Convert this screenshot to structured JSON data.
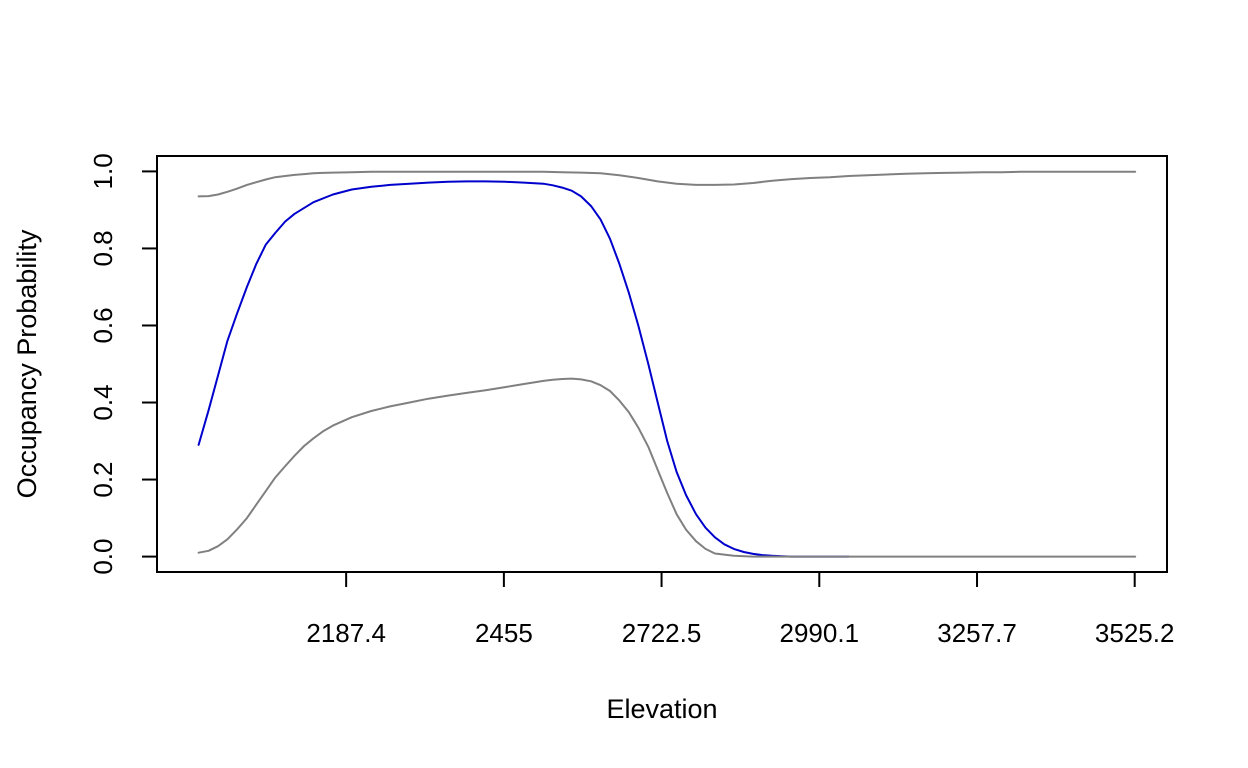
{
  "chart_data": {
    "type": "line",
    "title": "",
    "xlabel": "Elevation",
    "ylabel": "Occupancy Probability",
    "xlim": [
      1866.5,
      3580
    ],
    "ylim": [
      -0.04,
      1.04
    ],
    "grid": false,
    "x_ticks": [
      2187.4,
      2455,
      2722.5,
      2990.1,
      3257.7,
      3525.2
    ],
    "x_tick_labels": [
      "2187.4",
      "2455",
      "2722.5",
      "2990.1",
      "3257.7",
      "3525.2"
    ],
    "y_ticks": [
      0.0,
      0.2,
      0.4,
      0.6,
      0.8,
      1.0
    ],
    "y_tick_labels": [
      "0.0",
      "0.2",
      "0.4",
      "0.6",
      "0.8",
      "1.0"
    ],
    "series": [
      {
        "color": "#0000cc",
        "x": [
          1937,
          1954,
          1970,
          1986,
          2002,
          2019,
          2035,
          2051,
          2067,
          2084,
          2100,
          2132,
          2165,
          2197,
          2230,
          2262,
          2295,
          2327,
          2360,
          2392,
          2424,
          2457,
          2489,
          2522,
          2538,
          2554,
          2570,
          2586,
          2603,
          2619,
          2635,
          2651,
          2667,
          2683,
          2700,
          2716,
          2732,
          2748,
          2764,
          2781,
          2797,
          2813,
          2829,
          2845,
          2862,
          2878,
          2894,
          2910,
          2927,
          2943,
          2959,
          2975,
          2991,
          3008,
          3024,
          3040
        ],
        "y": [
          0.29,
          0.38,
          0.47,
          0.56,
          0.63,
          0.7,
          0.76,
          0.81,
          0.84,
          0.87,
          0.89,
          0.92,
          0.94,
          0.953,
          0.96,
          0.965,
          0.968,
          0.971,
          0.973,
          0.974,
          0.974,
          0.973,
          0.971,
          0.968,
          0.964,
          0.958,
          0.95,
          0.935,
          0.91,
          0.875,
          0.825,
          0.76,
          0.685,
          0.6,
          0.5,
          0.4,
          0.3,
          0.22,
          0.16,
          0.11,
          0.075,
          0.05,
          0.032,
          0.02,
          0.012,
          0.007,
          0.004,
          0.002,
          0.001,
          0.0,
          0.0,
          0.0,
          0.0,
          0.0,
          0.0,
          0.0
        ]
      },
      {
        "color": "#808080",
        "x": [
          1937,
          1954,
          1970,
          1986,
          2002,
          2019,
          2035,
          2051,
          2067,
          2084,
          2100,
          2116,
          2132,
          2148,
          2165,
          2197,
          2230,
          2262,
          2295,
          2327,
          2360,
          2392,
          2424,
          2457,
          2489,
          2522,
          2554,
          2586,
          2619,
          2651,
          2683,
          2716,
          2748,
          2781,
          2813,
          2845,
          2878,
          2910,
          2943,
          2975,
          3008,
          3040,
          3072,
          3105,
          3137,
          3170,
          3202,
          3234,
          3267,
          3299,
          3332,
          3364,
          3396,
          3429,
          3461,
          3494,
          3526
        ],
        "y": [
          0.935,
          0.936,
          0.94,
          0.947,
          0.955,
          0.965,
          0.972,
          0.979,
          0.985,
          0.988,
          0.991,
          0.993,
          0.995,
          0.996,
          0.997,
          0.998,
          0.999,
          0.999,
          0.999,
          0.999,
          0.999,
          0.999,
          0.999,
          0.999,
          0.999,
          0.999,
          0.998,
          0.997,
          0.995,
          0.99,
          0.983,
          0.974,
          0.968,
          0.965,
          0.965,
          0.966,
          0.97,
          0.976,
          0.98,
          0.983,
          0.985,
          0.988,
          0.99,
          0.992,
          0.994,
          0.995,
          0.996,
          0.997,
          0.998,
          0.998,
          0.999,
          0.999,
          0.999,
          0.999,
          0.999,
          0.999,
          0.999
        ]
      },
      {
        "color": "#808080",
        "x": [
          1937,
          1954,
          1970,
          1986,
          2002,
          2019,
          2035,
          2051,
          2067,
          2084,
          2100,
          2116,
          2132,
          2148,
          2165,
          2197,
          2230,
          2262,
          2295,
          2327,
          2360,
          2392,
          2424,
          2457,
          2489,
          2505,
          2522,
          2538,
          2554,
          2570,
          2586,
          2603,
          2619,
          2635,
          2651,
          2667,
          2683,
          2700,
          2716,
          2732,
          2748,
          2764,
          2781,
          2797,
          2813,
          2845,
          2878,
          2910,
          2943,
          2975,
          3008,
          3040,
          3072,
          3105,
          3137,
          3202,
          3267,
          3332,
          3396,
          3461,
          3526
        ],
        "y": [
          0.01,
          0.015,
          0.027,
          0.045,
          0.07,
          0.1,
          0.135,
          0.17,
          0.205,
          0.235,
          0.262,
          0.287,
          0.307,
          0.325,
          0.34,
          0.362,
          0.378,
          0.39,
          0.4,
          0.41,
          0.418,
          0.425,
          0.432,
          0.44,
          0.448,
          0.452,
          0.456,
          0.459,
          0.461,
          0.462,
          0.46,
          0.455,
          0.445,
          0.43,
          0.405,
          0.375,
          0.335,
          0.285,
          0.225,
          0.165,
          0.11,
          0.07,
          0.04,
          0.02,
          0.008,
          0.002,
          0.0,
          0.0,
          0.0,
          0.0,
          0.0,
          0.0,
          0.0,
          0.0,
          0.0,
          0.0,
          0.0,
          0.0,
          0.0,
          0.0,
          0.0
        ]
      }
    ]
  }
}
